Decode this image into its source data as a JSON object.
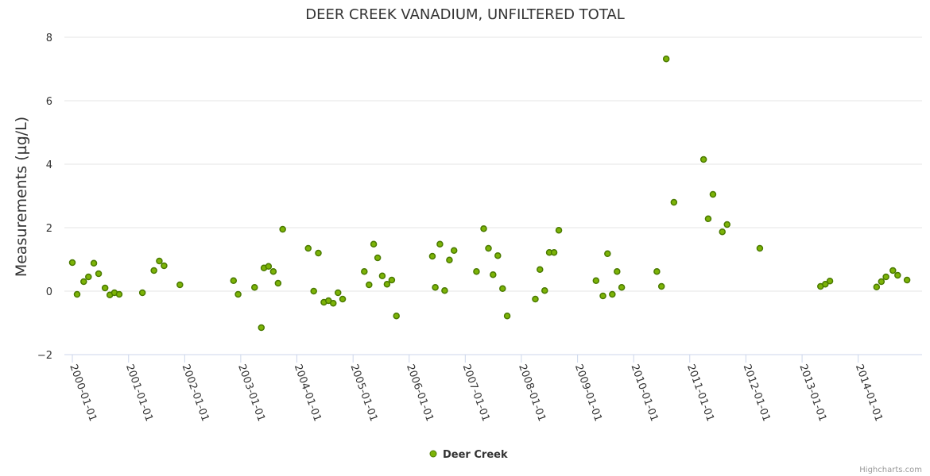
{
  "chart_data": {
    "type": "scatter",
    "title": "DEER CREEK VANADIUM, UNFILTERED TOTAL",
    "ylabel": "Measurements (µg/L)",
    "xlabel": "",
    "ylim": [
      -2,
      8
    ],
    "yticks": [
      -2,
      0,
      2,
      4,
      6,
      8
    ],
    "xlim": [
      "2000-01-01",
      "2014-12-31"
    ],
    "xtick_labels": [
      "2000-01-01",
      "2001-01-01",
      "2002-01-01",
      "2003-01-01",
      "2004-01-01",
      "2005-01-01",
      "2006-01-01",
      "2007-01-01",
      "2008-01-01",
      "2009-01-01",
      "2010-01-01",
      "2011-01-01",
      "2012-01-01",
      "2013-01-01",
      "2014-01-01"
    ],
    "grid": true,
    "legend": "bottom-center",
    "series": [
      {
        "name": "Deer Creek",
        "color": "#7cb307",
        "edge_color": "#4a7a00",
        "points": [
          [
            "2000-01-01",
            0.9
          ],
          [
            "2000-02-01",
            -0.1
          ],
          [
            "2000-03-15",
            0.3
          ],
          [
            "2000-04-15",
            0.45
          ],
          [
            "2000-05-20",
            0.88
          ],
          [
            "2000-06-20",
            0.55
          ],
          [
            "2000-08-01",
            0.1
          ],
          [
            "2000-09-01",
            -0.12
          ],
          [
            "2000-10-01",
            -0.05
          ],
          [
            "2000-11-01",
            -0.1
          ],
          [
            "2001-04-01",
            -0.05
          ],
          [
            "2001-06-15",
            0.65
          ],
          [
            "2001-07-20",
            0.95
          ],
          [
            "2001-08-20",
            0.8
          ],
          [
            "2001-12-01",
            0.2
          ],
          [
            "2002-11-15",
            0.33
          ],
          [
            "2002-12-15",
            -0.1
          ],
          [
            "2003-04-01",
            0.12
          ],
          [
            "2003-05-15",
            -1.15
          ],
          [
            "2003-06-01",
            0.73
          ],
          [
            "2003-07-01",
            0.78
          ],
          [
            "2003-08-01",
            0.62
          ],
          [
            "2003-09-01",
            0.25
          ],
          [
            "2003-10-01",
            1.95
          ],
          [
            "2004-03-15",
            1.35
          ],
          [
            "2004-04-20",
            0.0
          ],
          [
            "2004-05-20",
            1.2
          ],
          [
            "2004-06-25",
            -0.35
          ],
          [
            "2004-07-25",
            -0.3
          ],
          [
            "2004-08-25",
            -0.38
          ],
          [
            "2004-09-25",
            -0.05
          ],
          [
            "2004-10-25",
            -0.25
          ],
          [
            "2005-03-15",
            0.62
          ],
          [
            "2005-04-15",
            0.2
          ],
          [
            "2005-05-15",
            1.48
          ],
          [
            "2005-06-10",
            1.05
          ],
          [
            "2005-07-10",
            0.48
          ],
          [
            "2005-08-10",
            0.22
          ],
          [
            "2005-09-10",
            0.35
          ],
          [
            "2005-10-10",
            -0.78
          ],
          [
            "2006-06-01",
            1.1
          ],
          [
            "2006-06-20",
            0.12
          ],
          [
            "2006-07-20",
            1.48
          ],
          [
            "2006-08-20",
            0.02
          ],
          [
            "2006-09-20",
            0.98
          ],
          [
            "2006-10-20",
            1.28
          ],
          [
            "2007-03-15",
            0.62
          ],
          [
            "2007-05-01",
            1.97
          ],
          [
            "2007-06-01",
            1.35
          ],
          [
            "2007-07-01",
            0.52
          ],
          [
            "2007-08-01",
            1.12
          ],
          [
            "2007-09-01",
            0.08
          ],
          [
            "2007-10-01",
            -0.78
          ],
          [
            "2008-04-01",
            -0.25
          ],
          [
            "2008-05-01",
            0.68
          ],
          [
            "2008-06-01",
            0.02
          ],
          [
            "2008-07-01",
            1.22
          ],
          [
            "2008-08-01",
            1.22
          ],
          [
            "2008-09-01",
            1.92
          ],
          [
            "2009-05-01",
            0.33
          ],
          [
            "2009-06-15",
            -0.15
          ],
          [
            "2009-07-15",
            1.18
          ],
          [
            "2009-08-15",
            -0.1
          ],
          [
            "2009-09-15",
            0.62
          ],
          [
            "2009-10-15",
            0.12
          ],
          [
            "2010-06-01",
            0.62
          ],
          [
            "2010-07-01",
            0.15
          ],
          [
            "2010-08-01",
            7.32
          ],
          [
            "2010-09-20",
            2.8
          ],
          [
            "2011-04-01",
            4.15
          ],
          [
            "2011-05-01",
            2.28
          ],
          [
            "2011-06-01",
            3.05
          ],
          [
            "2011-08-01",
            1.87
          ],
          [
            "2011-09-01",
            2.1
          ],
          [
            "2012-04-01",
            1.35
          ],
          [
            "2013-05-01",
            0.15
          ],
          [
            "2013-06-01",
            0.22
          ],
          [
            "2013-07-01",
            0.32
          ],
          [
            "2014-05-01",
            0.13
          ],
          [
            "2014-06-01",
            0.3
          ],
          [
            "2014-07-01",
            0.45
          ],
          [
            "2014-08-15",
            0.65
          ],
          [
            "2014-09-15",
            0.5
          ],
          [
            "2014-11-15",
            0.35
          ]
        ]
      }
    ],
    "credits": "Highcharts.com"
  }
}
